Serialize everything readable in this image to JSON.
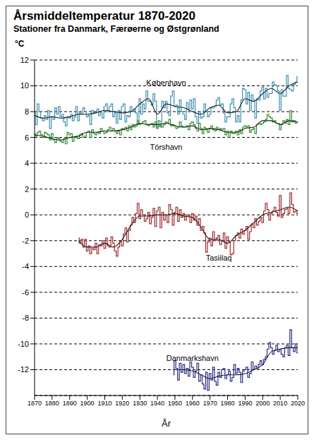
{
  "chart_data": {
    "type": "line",
    "title": "Årsmiddeltemperatur 1870-2020",
    "subtitle": "Stationer fra Danmark, Færøerne og Østgrønland",
    "y_label": "°C",
    "x_label": "År",
    "x": [
      1870,
      1871,
      1872,
      1873,
      1874,
      1875,
      1876,
      1877,
      1878,
      1879,
      1880,
      1881,
      1882,
      1883,
      1884,
      1885,
      1886,
      1887,
      1888,
      1889,
      1890,
      1891,
      1892,
      1893,
      1894,
      1895,
      1896,
      1897,
      1898,
      1899,
      1900,
      1901,
      1902,
      1903,
      1904,
      1905,
      1906,
      1907,
      1908,
      1909,
      1910,
      1911,
      1912,
      1913,
      1914,
      1915,
      1916,
      1917,
      1918,
      1919,
      1920,
      1921,
      1922,
      1923,
      1924,
      1925,
      1926,
      1927,
      1928,
      1929,
      1930,
      1931,
      1932,
      1933,
      1934,
      1935,
      1936,
      1937,
      1938,
      1939,
      1940,
      1941,
      1942,
      1943,
      1944,
      1945,
      1946,
      1947,
      1948,
      1949,
      1950,
      1951,
      1952,
      1953,
      1954,
      1955,
      1956,
      1957,
      1958,
      1959,
      1960,
      1961,
      1962,
      1963,
      1964,
      1965,
      1966,
      1967,
      1968,
      1969,
      1970,
      1971,
      1972,
      1973,
      1974,
      1975,
      1976,
      1977,
      1978,
      1979,
      1980,
      1981,
      1982,
      1983,
      1984,
      1985,
      1986,
      1987,
      1988,
      1989,
      1990,
      1991,
      1992,
      1993,
      1994,
      1995,
      1996,
      1997,
      1998,
      1999,
      2000,
      2001,
      2002,
      2003,
      2004,
      2005,
      2006,
      2007,
      2008,
      2009,
      2010,
      2011,
      2012,
      2013,
      2014,
      2015,
      2016,
      2017,
      2018,
      2019,
      2020
    ],
    "trend_x": [
      1870,
      1875,
      1880,
      1885,
      1890,
      1895,
      1900,
      1905,
      1910,
      1915,
      1920,
      1925,
      1930,
      1935,
      1940,
      1945,
      1950,
      1955,
      1960,
      1965,
      1970,
      1975,
      1980,
      1985,
      1990,
      1995,
      2000,
      2005,
      2010,
      2015,
      2020
    ],
    "series": [
      {
        "name": "København",
        "color": "#3d8fb2",
        "values": [
          7.9,
          7.0,
          8.6,
          8.0,
          7.5,
          7.3,
          7.7,
          7.4,
          8.1,
          6.7,
          7.6,
          7.4,
          8.3,
          7.8,
          8.4,
          7.6,
          7.8,
          7.2,
          6.9,
          7.6,
          7.5,
          7.8,
          7.3,
          7.6,
          8.4,
          7.3,
          7.9,
          7.8,
          8.3,
          8.0,
          7.6,
          7.7,
          7.0,
          8.1,
          7.9,
          8.0,
          8.2,
          7.7,
          7.9,
          7.5,
          8.4,
          8.6,
          8.0,
          8.4,
          8.6,
          7.6,
          7.9,
          7.1,
          8.1,
          7.4,
          8.4,
          8.6,
          7.2,
          7.7,
          7.6,
          8.4,
          8.0,
          8.2,
          7.9,
          7.0,
          9.0,
          7.8,
          8.6,
          8.2,
          9.6,
          8.8,
          8.8,
          8.5,
          9.4,
          8.8,
          6.8,
          6.9,
          6.8,
          8.8,
          8.3,
          8.8,
          7.9,
          7.7,
          9.2,
          9.6,
          8.4,
          8.5,
          7.8,
          8.9,
          8.0,
          7.8,
          7.4,
          8.7,
          8.2,
          8.9,
          8.2,
          9.0,
          7.6,
          7.1,
          8.0,
          7.5,
          7.6,
          8.6,
          8.0,
          7.6,
          7.8,
          8.3,
          8.3,
          8.4,
          8.9,
          9.1,
          8.5,
          8.6,
          7.9,
          7.2,
          7.6,
          7.6,
          8.6,
          9.0,
          8.3,
          7.2,
          7.7,
          7.2,
          8.9,
          9.8,
          9.7,
          8.6,
          9.5,
          8.1,
          9.3,
          8.9,
          7.5,
          9.0,
          8.9,
          9.6,
          9.9,
          9.0,
          9.8,
          9.1,
          9.4,
          9.4,
          10.3,
          10.1,
          10.0,
          9.6,
          8.1,
          9.7,
          9.2,
          9.2,
          10.8,
          9.8,
          9.7,
          9.6,
          10.1,
          10.3,
          10.7
        ],
        "trend": [
          7.7,
          7.5,
          7.6,
          7.5,
          7.6,
          7.8,
          7.8,
          7.9,
          8.1,
          8.0,
          7.9,
          8.0,
          8.6,
          9.0,
          7.8,
          8.6,
          8.4,
          8.3,
          8.0,
          7.8,
          8.3,
          8.5,
          7.9,
          8.0,
          9.0,
          8.8,
          9.4,
          9.8,
          9.4,
          10.0,
          10.3
        ]
      },
      {
        "name": "Tórshavn",
        "color": "#2f8f2f",
        "values": [
          6.3,
          6.1,
          6.4,
          6.5,
          6.2,
          6.0,
          6.4,
          6.3,
          6.2,
          5.8,
          6.3,
          5.8,
          5.6,
          6.0,
          5.9,
          5.7,
          5.6,
          5.9,
          5.5,
          6.4,
          6.2,
          6.3,
          5.7,
          6.0,
          6.1,
          5.9,
          6.2,
          6.3,
          6.0,
          6.1,
          6.4,
          6.5,
          6.0,
          6.6,
          6.3,
          6.2,
          6.4,
          6.3,
          6.7,
          6.5,
          6.3,
          6.4,
          6.6,
          6.8,
          6.5,
          6.7,
          6.5,
          6.3,
          6.5,
          6.2,
          6.7,
          6.6,
          6.8,
          6.5,
          6.9,
          6.6,
          7.0,
          6.8,
          6.9,
          7.3,
          7.0,
          7.1,
          7.2,
          7.3,
          7.0,
          6.9,
          7.0,
          7.1,
          6.8,
          7.2,
          6.7,
          7.3,
          6.9,
          6.8,
          7.0,
          7.2,
          7.1,
          7.4,
          6.9,
          7.0,
          6.9,
          6.7,
          6.8,
          7.2,
          6.9,
          6.8,
          6.8,
          6.9,
          6.6,
          7.1,
          7.2,
          7.0,
          6.7,
          6.5,
          7.1,
          6.7,
          6.3,
          6.8,
          6.6,
          6.4,
          6.7,
          6.9,
          6.6,
          6.5,
          6.8,
          6.6,
          6.7,
          6.6,
          6.7,
          6.2,
          6.5,
          6.0,
          6.5,
          6.3,
          6.3,
          6.5,
          6.2,
          6.6,
          6.3,
          6.8,
          6.9,
          6.8,
          6.9,
          6.4,
          6.6,
          6.7,
          6.3,
          7.0,
          7.1,
          7.0,
          7.1,
          7.2,
          7.4,
          7.8,
          7.6,
          7.5,
          7.2,
          7.3,
          7.1,
          7.1,
          6.6,
          7.0,
          7.3,
          7.1,
          7.4,
          7.0,
          8.1,
          7.2,
          7.3,
          7.1,
          7.2
        ],
        "trend": [
          6.2,
          6.1,
          5.9,
          5.8,
          6.0,
          6.1,
          6.4,
          6.4,
          6.5,
          6.5,
          6.6,
          6.8,
          7.1,
          7.0,
          7.0,
          7.1,
          6.9,
          6.8,
          6.9,
          6.6,
          6.7,
          6.6,
          6.4,
          6.4,
          6.7,
          6.8,
          7.3,
          7.3,
          7.0,
          7.3,
          7.2
        ]
      },
      {
        "name": "Tasiilaq",
        "color": "#a3282b",
        "values": [
          null,
          null,
          null,
          null,
          null,
          null,
          null,
          null,
          null,
          null,
          null,
          null,
          null,
          null,
          null,
          null,
          null,
          null,
          null,
          null,
          null,
          null,
          null,
          null,
          null,
          -1.8,
          -2.2,
          -1.9,
          -2.5,
          -1.9,
          -2.8,
          -2.4,
          -3.0,
          -2.6,
          -2.7,
          -2.2,
          -3.0,
          -2.3,
          -2.4,
          -2.0,
          -2.6,
          -1.8,
          -2.4,
          -2.5,
          -1.7,
          -2.2,
          -2.8,
          -3.2,
          -2.5,
          -2.0,
          -2.4,
          -1.5,
          -1.0,
          -2.1,
          -1.2,
          -0.8,
          -0.2,
          -0.6,
          0.1,
          0.9,
          -0.3,
          0.4,
          0.0,
          -0.5,
          -0.3,
          0.2,
          -0.7,
          -0.2,
          0.5,
          -0.9,
          0.3,
          0.6,
          -1.0,
          0.2,
          -0.4,
          0.0,
          -0.6,
          0.8,
          0.4,
          -0.8,
          0.2,
          0.6,
          -0.5,
          0.4,
          -0.2,
          0.1,
          -0.4,
          0.0,
          -0.1,
          -0.6,
          0.1,
          -0.4,
          -0.1,
          -0.8,
          -0.3,
          -1.2,
          -0.9,
          -1.4,
          -2.9,
          -2.1,
          -1.8,
          -2.4,
          -1.3,
          -2.0,
          -1.8,
          -1.6,
          -2.3,
          -2.0,
          -1.4,
          -2.6,
          -1.7,
          -2.1,
          -3.1,
          -3.0,
          -2.0,
          -1.6,
          -1.4,
          -1.8,
          -1.1,
          -1.5,
          -1.2,
          -0.9,
          -1.9,
          -1.3,
          -0.7,
          -1.0,
          -0.3,
          -0.8,
          -0.5,
          -0.2,
          -0.6,
          0.3,
          0.9,
          0.4,
          -0.4,
          0.1,
          0.3,
          0.6,
          0.2,
          -0.1,
          1.5,
          -0.2,
          0.1,
          0.4,
          0.5,
          0.1,
          1.7,
          0.8,
          0.2,
          0.3,
          0.1
        ],
        "trend": [
          null,
          null,
          null,
          null,
          null,
          -2.0,
          -2.5,
          -2.5,
          -2.2,
          -2.5,
          -1.9,
          -0.8,
          -0.1,
          -0.1,
          0.0,
          0.0,
          0.1,
          -0.1,
          -0.2,
          -1.0,
          -1.9,
          -1.9,
          -2.2,
          -1.6,
          -1.2,
          -0.6,
          0.0,
          0.2,
          0.4,
          0.6,
          0.3
        ]
      },
      {
        "name": "Danmarkshavn",
        "color": "#2b2b8c",
        "values": [
          null,
          null,
          null,
          null,
          null,
          null,
          null,
          null,
          null,
          null,
          null,
          null,
          null,
          null,
          null,
          null,
          null,
          null,
          null,
          null,
          null,
          null,
          null,
          null,
          null,
          null,
          null,
          null,
          null,
          null,
          null,
          null,
          null,
          null,
          null,
          null,
          null,
          null,
          null,
          null,
          null,
          null,
          null,
          null,
          null,
          null,
          null,
          null,
          null,
          null,
          null,
          null,
          null,
          null,
          null,
          null,
          null,
          null,
          null,
          null,
          null,
          null,
          null,
          null,
          null,
          null,
          null,
          null,
          null,
          null,
          null,
          null,
          null,
          null,
          null,
          null,
          null,
          null,
          null,
          -12.4,
          -11.3,
          -11.9,
          -12.8,
          -11.5,
          -12.2,
          -11.6,
          -12.3,
          -11.9,
          -12.5,
          -11.4,
          -11.8,
          -12.6,
          -12.1,
          -11.5,
          -12.9,
          -12.4,
          -13.1,
          -13.5,
          -12.2,
          -13.6,
          -12.3,
          -12.8,
          -11.8,
          -12.9,
          -13.2,
          -12.2,
          -12.6,
          -12.0,
          -11.9,
          -12.7,
          -12.4,
          -12.1,
          -12.9,
          -12.6,
          -11.6,
          -12.3,
          -11.9,
          -12.2,
          -13.0,
          -12.1,
          -12.0,
          -11.8,
          -12.6,
          -12.3,
          -11.4,
          -12.0,
          -11.7,
          -11.9,
          -11.6,
          -11.3,
          -11.6,
          -11.2,
          -11.0,
          -10.4,
          -9.9,
          -10.3,
          -10.8,
          -10.5,
          -10.1,
          -10.6,
          -10.4,
          -10.8,
          -11.0,
          -10.3,
          -10.1,
          -10.9,
          -8.9,
          -10.3,
          -10.6,
          -10.0,
          -10.7
        ],
        "trend": [
          null,
          null,
          null,
          null,
          null,
          null,
          null,
          null,
          null,
          null,
          null,
          null,
          null,
          null,
          null,
          null,
          -12.0,
          -12.0,
          -12.1,
          -12.4,
          -12.7,
          -12.5,
          -12.4,
          -12.4,
          -12.3,
          -12.0,
          -11.6,
          -10.6,
          -10.4,
          -10.3,
          -10.3
        ]
      }
    ],
    "xlim": [
      1870,
      2020
    ],
    "xticks": [
      1870,
      1880,
      1890,
      1900,
      1910,
      1920,
      1930,
      1940,
      1950,
      1960,
      1970,
      1980,
      1990,
      2000,
      2010,
      2020
    ],
    "ylim": [
      -14,
      12
    ],
    "yticks": [
      -12,
      -10,
      -8,
      -6,
      -4,
      -2,
      0,
      2,
      4,
      6,
      8,
      10,
      12
    ],
    "grid": true,
    "line_style": "step",
    "marker": "none"
  }
}
